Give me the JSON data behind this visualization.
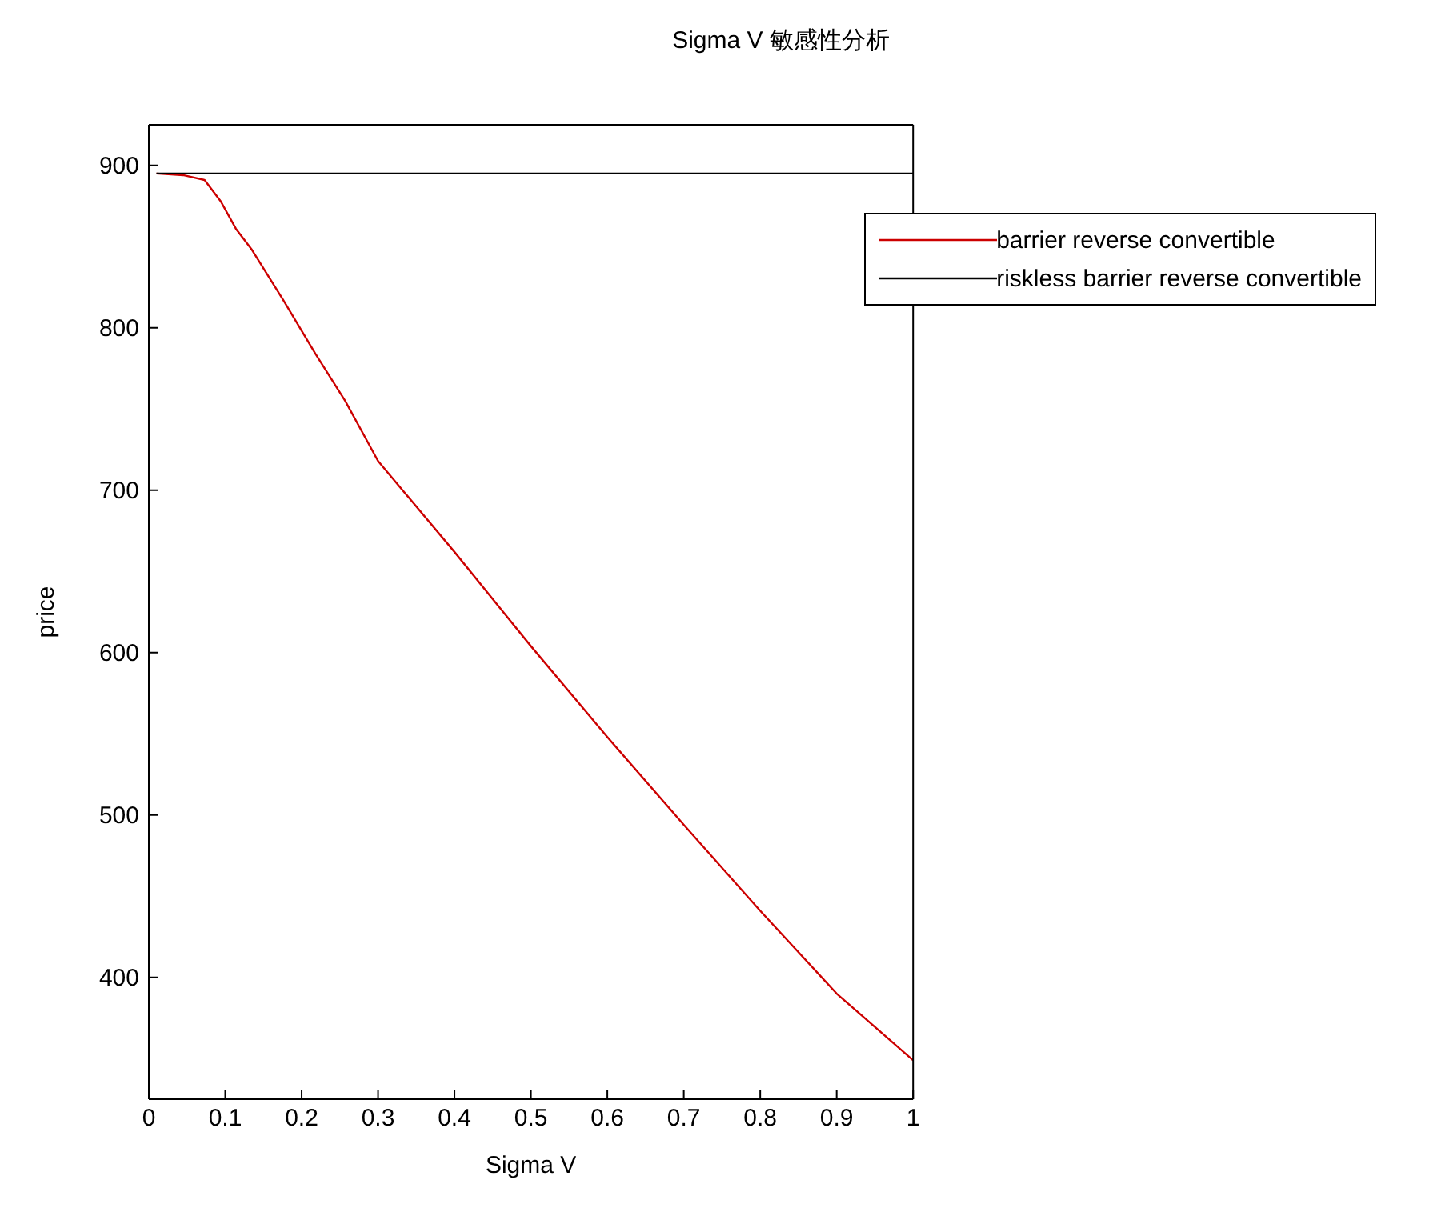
{
  "chart_data": {
    "type": "line",
    "title": "Sigma V 敏感性分析",
    "xlabel": "Sigma V",
    "ylabel": "price",
    "xlim": [
      0,
      1
    ],
    "xticks": [
      0,
      0.1,
      0.2,
      0.3,
      0.4,
      0.5,
      0.6,
      0.7,
      0.8,
      0.9,
      1
    ],
    "ylim": [
      325,
      925
    ],
    "yticks": [
      400,
      500,
      600,
      700,
      800,
      900
    ],
    "grid": false,
    "legend": "top right",
    "marker": "none",
    "line_style": "solid",
    "series": [
      {
        "name": "barrier reverse convertible",
        "color": "#cc0000",
        "x": [
          0.01,
          0.045,
          0.073,
          0.094,
          0.114,
          0.135,
          0.176,
          0.218,
          0.257,
          0.3,
          0.4,
          0.5,
          0.6,
          0.7,
          0.8,
          0.9,
          1
        ],
        "values": [
          895,
          894,
          891,
          878,
          861,
          848,
          817,
          784,
          755,
          718,
          662,
          604,
          548,
          494,
          441,
          390,
          349
        ]
      },
      {
        "name": "riskless barrier reverse convertible",
        "color": "#000000",
        "x": [
          0.01,
          1
        ],
        "values": [
          895,
          895
        ]
      }
    ]
  }
}
